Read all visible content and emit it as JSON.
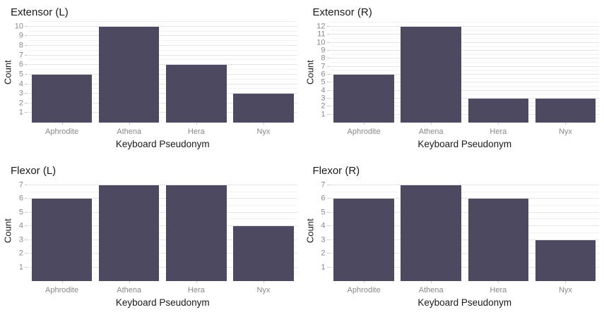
{
  "figure": {
    "background": "#ffffff",
    "bar_color": "#4d4961",
    "grid_major_color": "#e4e4e4",
    "grid_minor_color": "#f2f2f2",
    "tick_mark_color": "#c9c9c9",
    "tick_label_color": "#888888",
    "text_color": "#1a1a1a"
  },
  "chart_data": [
    {
      "type": "bar",
      "title": "Extensor (L)",
      "xlabel": "Keyboard Pseudonym",
      "ylabel": "Count",
      "categories": [
        "Aphrodite",
        "Athena",
        "Hera",
        "Nyx"
      ],
      "values": [
        5,
        10,
        6,
        3
      ],
      "yticks": [
        1,
        2,
        3,
        4,
        5,
        6,
        7,
        8,
        9,
        10
      ],
      "ylim": [
        0,
        10.5
      ],
      "grid": true,
      "legend": false
    },
    {
      "type": "bar",
      "title": "Extensor (R)",
      "xlabel": "Keyboard Pseudonym",
      "ylabel": "Count",
      "categories": [
        "Aphrodite",
        "Athena",
        "Hera",
        "Nyx"
      ],
      "values": [
        6,
        12,
        3,
        3
      ],
      "yticks": [
        1,
        2,
        3,
        4,
        5,
        6,
        7,
        8,
        9,
        10,
        11,
        12
      ],
      "ylim": [
        0,
        12.6
      ],
      "grid": true,
      "legend": false
    },
    {
      "type": "bar",
      "title": "Flexor (L)",
      "xlabel": "Keyboard Pseudonym",
      "ylabel": "Count",
      "categories": [
        "Aphrodite",
        "Athena",
        "Hera",
        "Nyx"
      ],
      "values": [
        6,
        7,
        7,
        4
      ],
      "yticks": [
        1,
        2,
        3,
        4,
        5,
        6,
        7
      ],
      "ylim": [
        0,
        7.35
      ],
      "grid": true,
      "legend": false
    },
    {
      "type": "bar",
      "title": "Flexor (R)",
      "xlabel": "Keyboard Pseudonym",
      "ylabel": "Count",
      "categories": [
        "Aphrodite",
        "Athena",
        "Hera",
        "Nyx"
      ],
      "values": [
        6,
        7,
        6,
        3
      ],
      "yticks": [
        1,
        2,
        3,
        4,
        5,
        6,
        7
      ],
      "ylim": [
        0,
        7.35
      ],
      "grid": true,
      "legend": false
    }
  ]
}
